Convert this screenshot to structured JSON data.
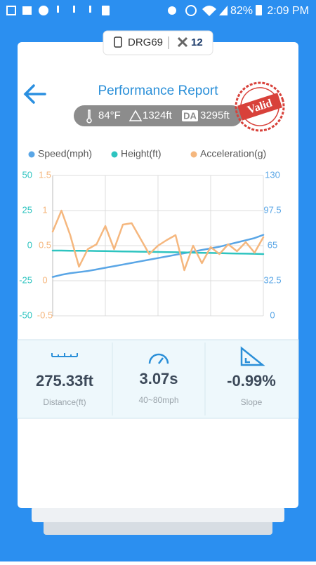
{
  "status_bar": {
    "battery": "82%",
    "time": "2:09 PM"
  },
  "device": {
    "name": "DRG69",
    "satellites": "12"
  },
  "title": "Performance Report",
  "conditions": {
    "temperature": "84°F",
    "altitude": "1324ft",
    "da_label": "DA",
    "density_altitude": "3295ft"
  },
  "stamp": "Valid",
  "chart_data": {
    "type": "line",
    "categories": [
      null,
      null,
      null,
      null,
      null,
      null,
      null,
      null,
      null,
      null,
      null,
      null,
      null,
      null,
      null,
      null,
      null,
      null,
      null,
      null,
      null,
      null,
      null,
      null,
      null
    ],
    "series": [
      {
        "name": "Speed(mph)",
        "color": "#5aa6e6",
        "axis": "y2",
        "values": [
          36,
          38,
          39.5,
          40.5,
          41.5,
          43,
          44.5,
          46,
          47.5,
          49,
          50.5,
          52,
          53.5,
          55,
          56.5,
          58,
          59.5,
          61,
          62.5,
          64,
          66,
          68,
          70,
          72,
          75
        ]
      },
      {
        "name": "Height(ft)",
        "color": "#2ec4c0",
        "values": [
          -3.5,
          -3.5,
          -3.6,
          -3.6,
          -3.7,
          -3.8,
          -3.9,
          -4,
          -4.1,
          -4.2,
          -4.3,
          -4.4,
          -4.5,
          -4.6,
          -4.7,
          -4.8,
          -5,
          -5.1,
          -5.2,
          -5.3,
          -5.5,
          -5.6,
          -5.7,
          -5.8,
          -6
        ]
      },
      {
        "name": "Acceleration(g)",
        "color": "#f5b77e",
        "axis": "y3",
        "values": [
          0.7,
          1.0,
          0.65,
          0.2,
          0.45,
          0.52,
          0.78,
          0.45,
          0.8,
          0.82,
          0.6,
          0.38,
          0.5,
          0.58,
          0.65,
          0.15,
          0.5,
          0.25,
          0.48,
          0.38,
          0.52,
          0.42,
          0.55,
          0.4,
          0.62
        ]
      }
    ],
    "ylim": [
      -50,
      50
    ],
    "yticks": [
      50,
      25,
      0,
      -25,
      -50
    ],
    "y3lim": [
      -0.5,
      1.5
    ],
    "y3ticks": [
      1.5,
      1,
      0.5,
      0,
      -0.5
    ],
    "y2lim": [
      0,
      130
    ],
    "y2ticks": [
      130,
      97.5,
      65,
      32.5,
      0
    ],
    "grid": true
  },
  "stats": [
    {
      "value": "275.33ft",
      "label": "Distance(ft)"
    },
    {
      "value": "3.07s",
      "label": "40~80mph"
    },
    {
      "value": "-0.99%",
      "label": "Slope"
    }
  ]
}
